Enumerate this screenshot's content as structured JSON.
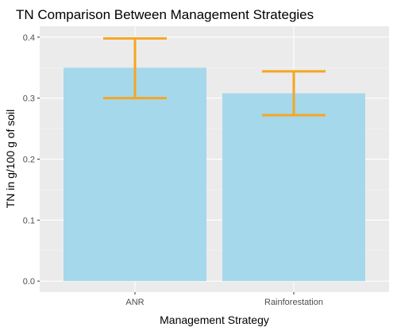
{
  "chart_data": {
    "type": "bar",
    "title": "TN Comparison Between Management Strategies",
    "xlabel": "Management Strategy",
    "ylabel": "TN in g/100 g of soil",
    "categories": [
      "ANR",
      "Rainforestation"
    ],
    "values": [
      0.35,
      0.308
    ],
    "error_bars": [
      {
        "lower": 0.3,
        "upper": 0.398
      },
      {
        "lower": 0.272,
        "upper": 0.344
      }
    ],
    "ylim": [
      -0.018,
      0.418
    ],
    "yticks": [
      0.0,
      0.1,
      0.2,
      0.3,
      0.4
    ],
    "ytick_labels": [
      "0.0",
      "0.1",
      "0.2",
      "0.3",
      "0.4"
    ],
    "grid": true,
    "legend": "none"
  },
  "colors": {
    "panel_background": "#ebebeb",
    "grid_major": "#ffffff",
    "grid_minor": "#f5f5f5",
    "bar_fill": "#a6d8eb",
    "error_bar": "#f5a623",
    "tick_label": "#4d4d4d"
  }
}
